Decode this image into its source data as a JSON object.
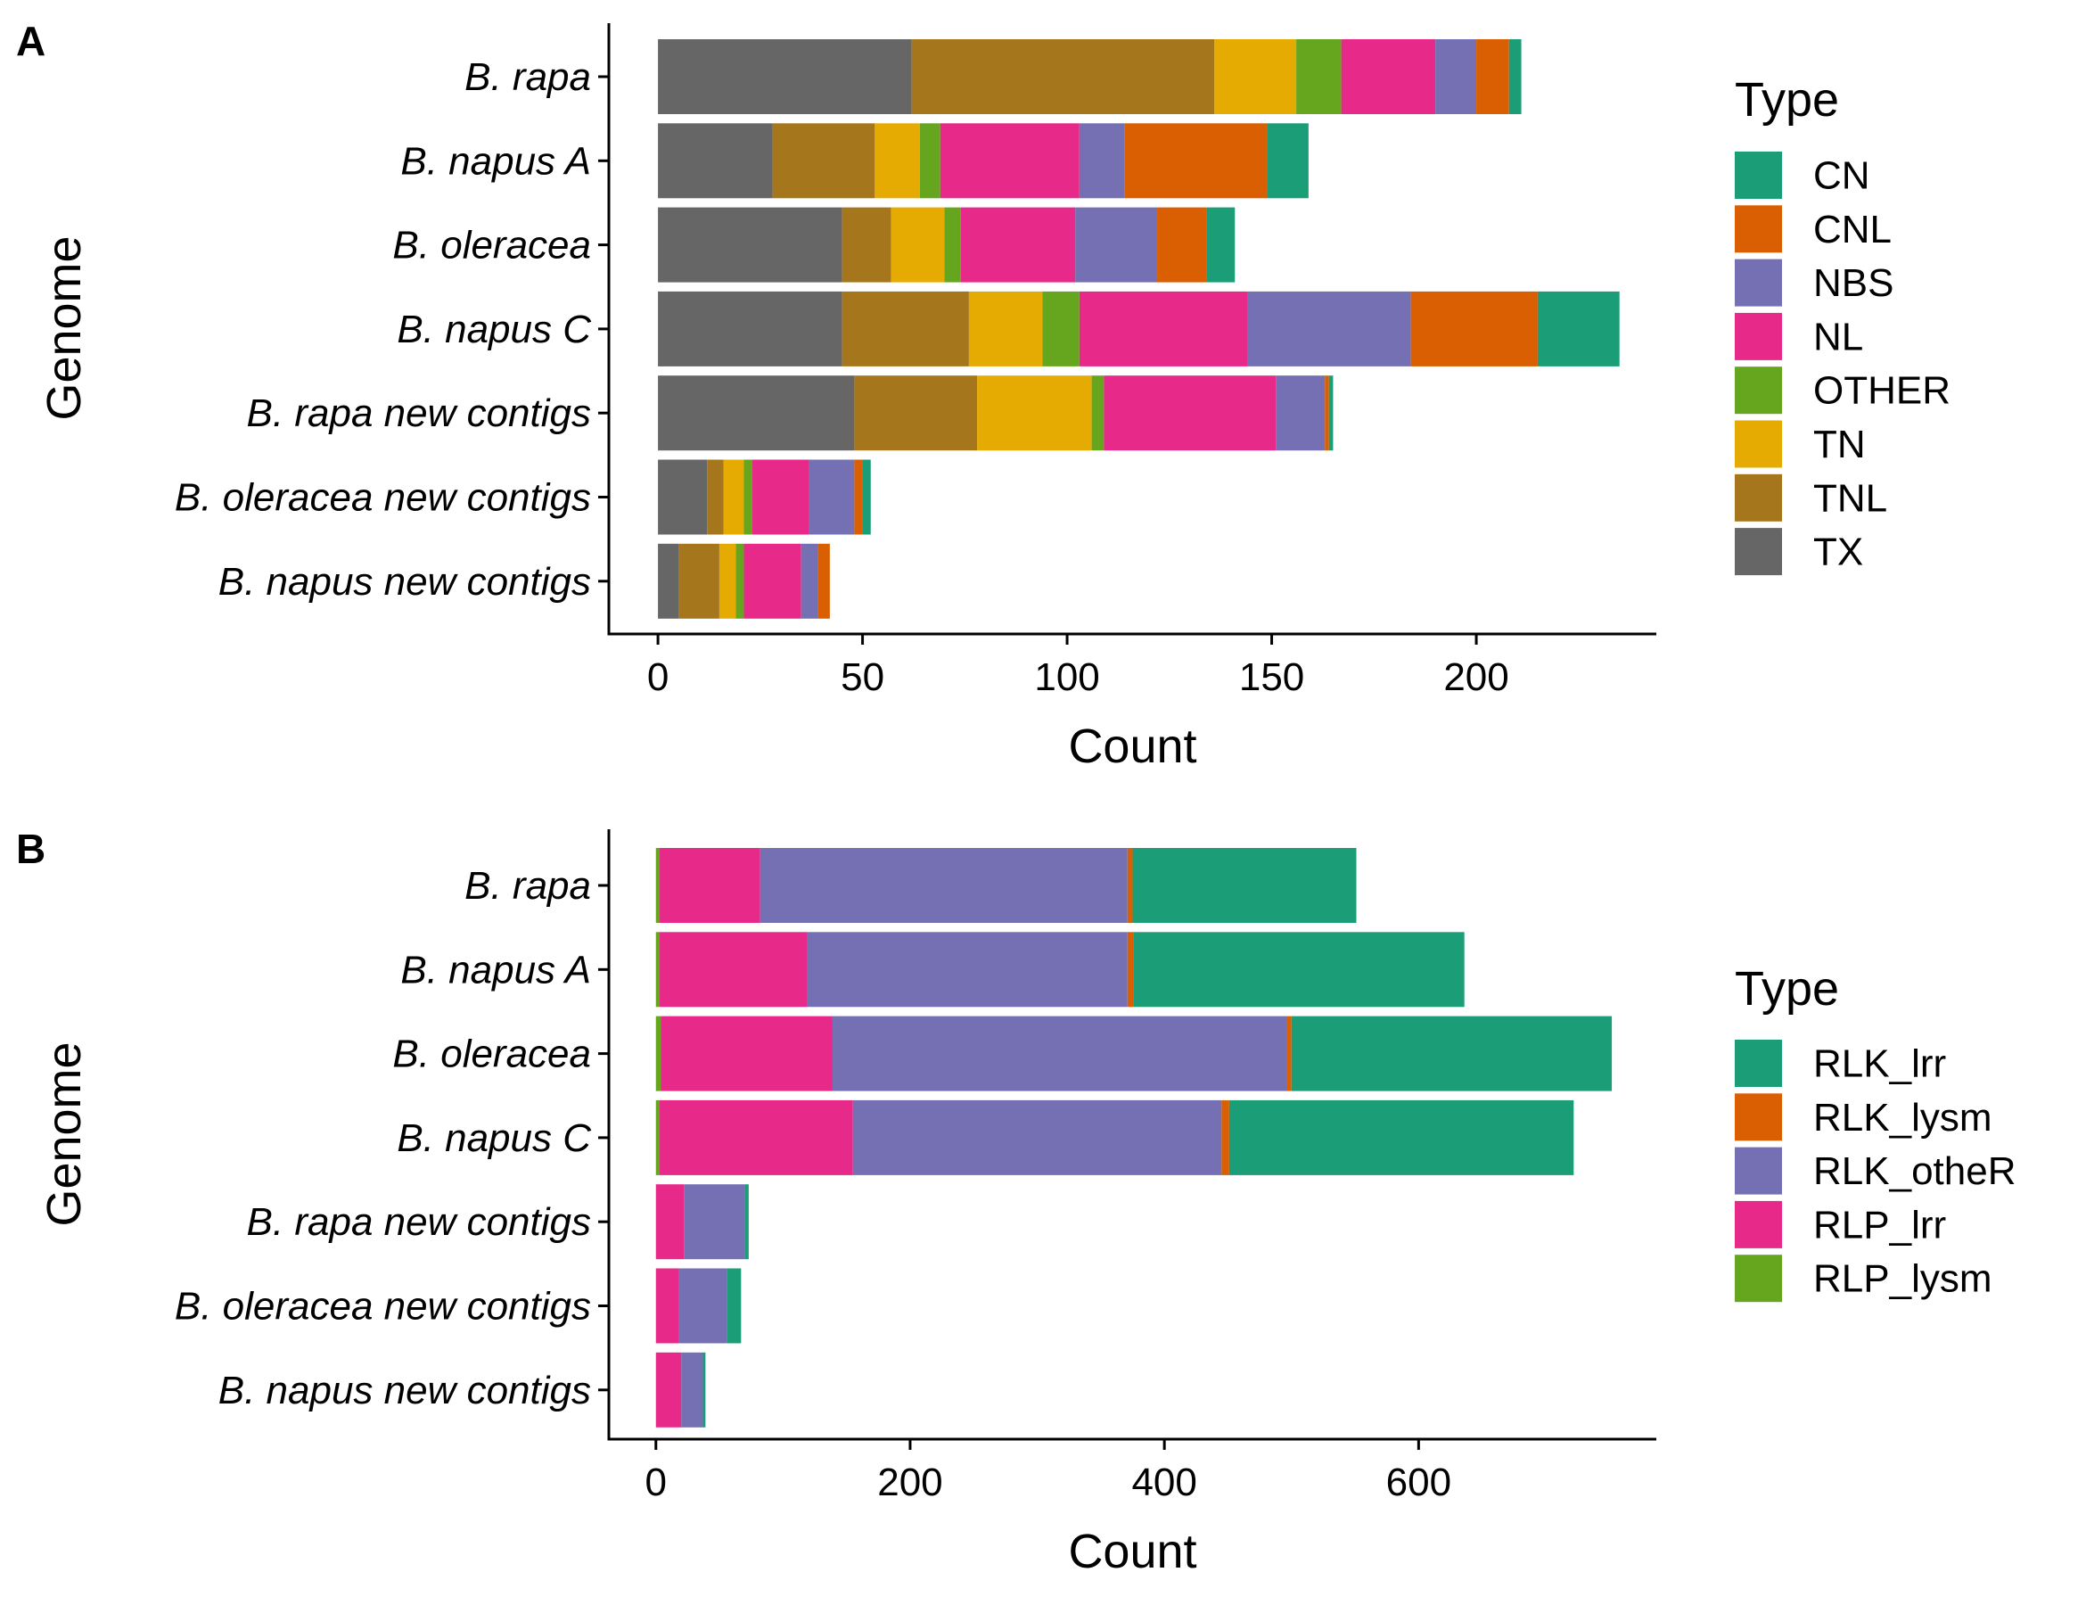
{
  "chart_data": [
    {
      "panel_label": "A",
      "type": "bar",
      "orientation": "horizontal",
      "stacked": true,
      "xlabel": "Count",
      "ylabel": "Genome",
      "xlim": [
        -12,
        244
      ],
      "x_ticks": [
        0,
        50,
        100,
        150,
        200
      ],
      "grid": false,
      "legend_position": "right",
      "legend_title": "Type",
      "categories": [
        "B. rapa",
        "B. napus A",
        "B. oleracea",
        "B. napus C",
        "B. rapa new contigs",
        "B. oleracea new contigs",
        "B. napus new contigs"
      ],
      "series": [
        {
          "name": "TX",
          "color": "#666666",
          "values": [
            62,
            28,
            45,
            45,
            48,
            12,
            5
          ]
        },
        {
          "name": "TNL",
          "color": "#A6761D",
          "values": [
            74,
            25,
            12,
            31,
            30,
            4,
            10
          ]
        },
        {
          "name": "TN",
          "color": "#E6AB02",
          "values": [
            20,
            11,
            13,
            18,
            28,
            5,
            4
          ]
        },
        {
          "name": "OTHER",
          "color": "#66A61E",
          "values": [
            11,
            5,
            4,
            9,
            3,
            2,
            2
          ]
        },
        {
          "name": "NL",
          "color": "#E7298A",
          "values": [
            23,
            34,
            28,
            41,
            42,
            14,
            14
          ]
        },
        {
          "name": "NBS",
          "color": "#7570B3",
          "values": [
            10,
            11,
            20,
            40,
            12,
            11,
            4
          ]
        },
        {
          "name": "CNL",
          "color": "#D95F02",
          "values": [
            8,
            35,
            12,
            31,
            1,
            2,
            3
          ]
        },
        {
          "name": "CN",
          "color": "#1B9E77",
          "values": [
            3,
            10,
            7,
            20,
            1,
            2,
            0
          ]
        }
      ],
      "legend_order": [
        "CN",
        "CNL",
        "NBS",
        "NL",
        "OTHER",
        "TN",
        "TNL",
        "TX"
      ]
    },
    {
      "panel_label": "B",
      "type": "bar",
      "orientation": "horizontal",
      "stacked": true,
      "xlabel": "Count",
      "ylabel": "Genome",
      "xlim": [
        -37,
        787
      ],
      "x_ticks": [
        0,
        200,
        400,
        600
      ],
      "grid": false,
      "legend_position": "right",
      "legend_title": "Type",
      "categories": [
        "B. rapa",
        "B. napus A",
        "B. oleracea",
        "B. napus C",
        "B. rapa new contigs",
        "B. oleracea new contigs",
        "B. napus new contigs"
      ],
      "series": [
        {
          "name": "RLP_lysm",
          "color": "#66A61E",
          "values": [
            3,
            3,
            4,
            3,
            0,
            0,
            0
          ]
        },
        {
          "name": "RLP_lrr",
          "color": "#E7298A",
          "values": [
            79,
            116,
            135,
            152,
            22,
            18,
            20
          ]
        },
        {
          "name": "RLK_otheR",
          "color": "#7570B3",
          "values": [
            289,
            252,
            357,
            290,
            48,
            38,
            17
          ]
        },
        {
          "name": "RLK_lysm",
          "color": "#D95F02",
          "values": [
            4,
            5,
            4,
            6,
            0,
            0,
            0
          ]
        },
        {
          "name": "RLK_lrr",
          "color": "#1B9E77",
          "values": [
            176,
            260,
            252,
            271,
            3,
            11,
            2
          ]
        }
      ],
      "legend_order": [
        "RLK_lrr",
        "RLK_lysm",
        "RLK_otheR",
        "RLP_lrr",
        "RLP_lysm"
      ]
    }
  ]
}
